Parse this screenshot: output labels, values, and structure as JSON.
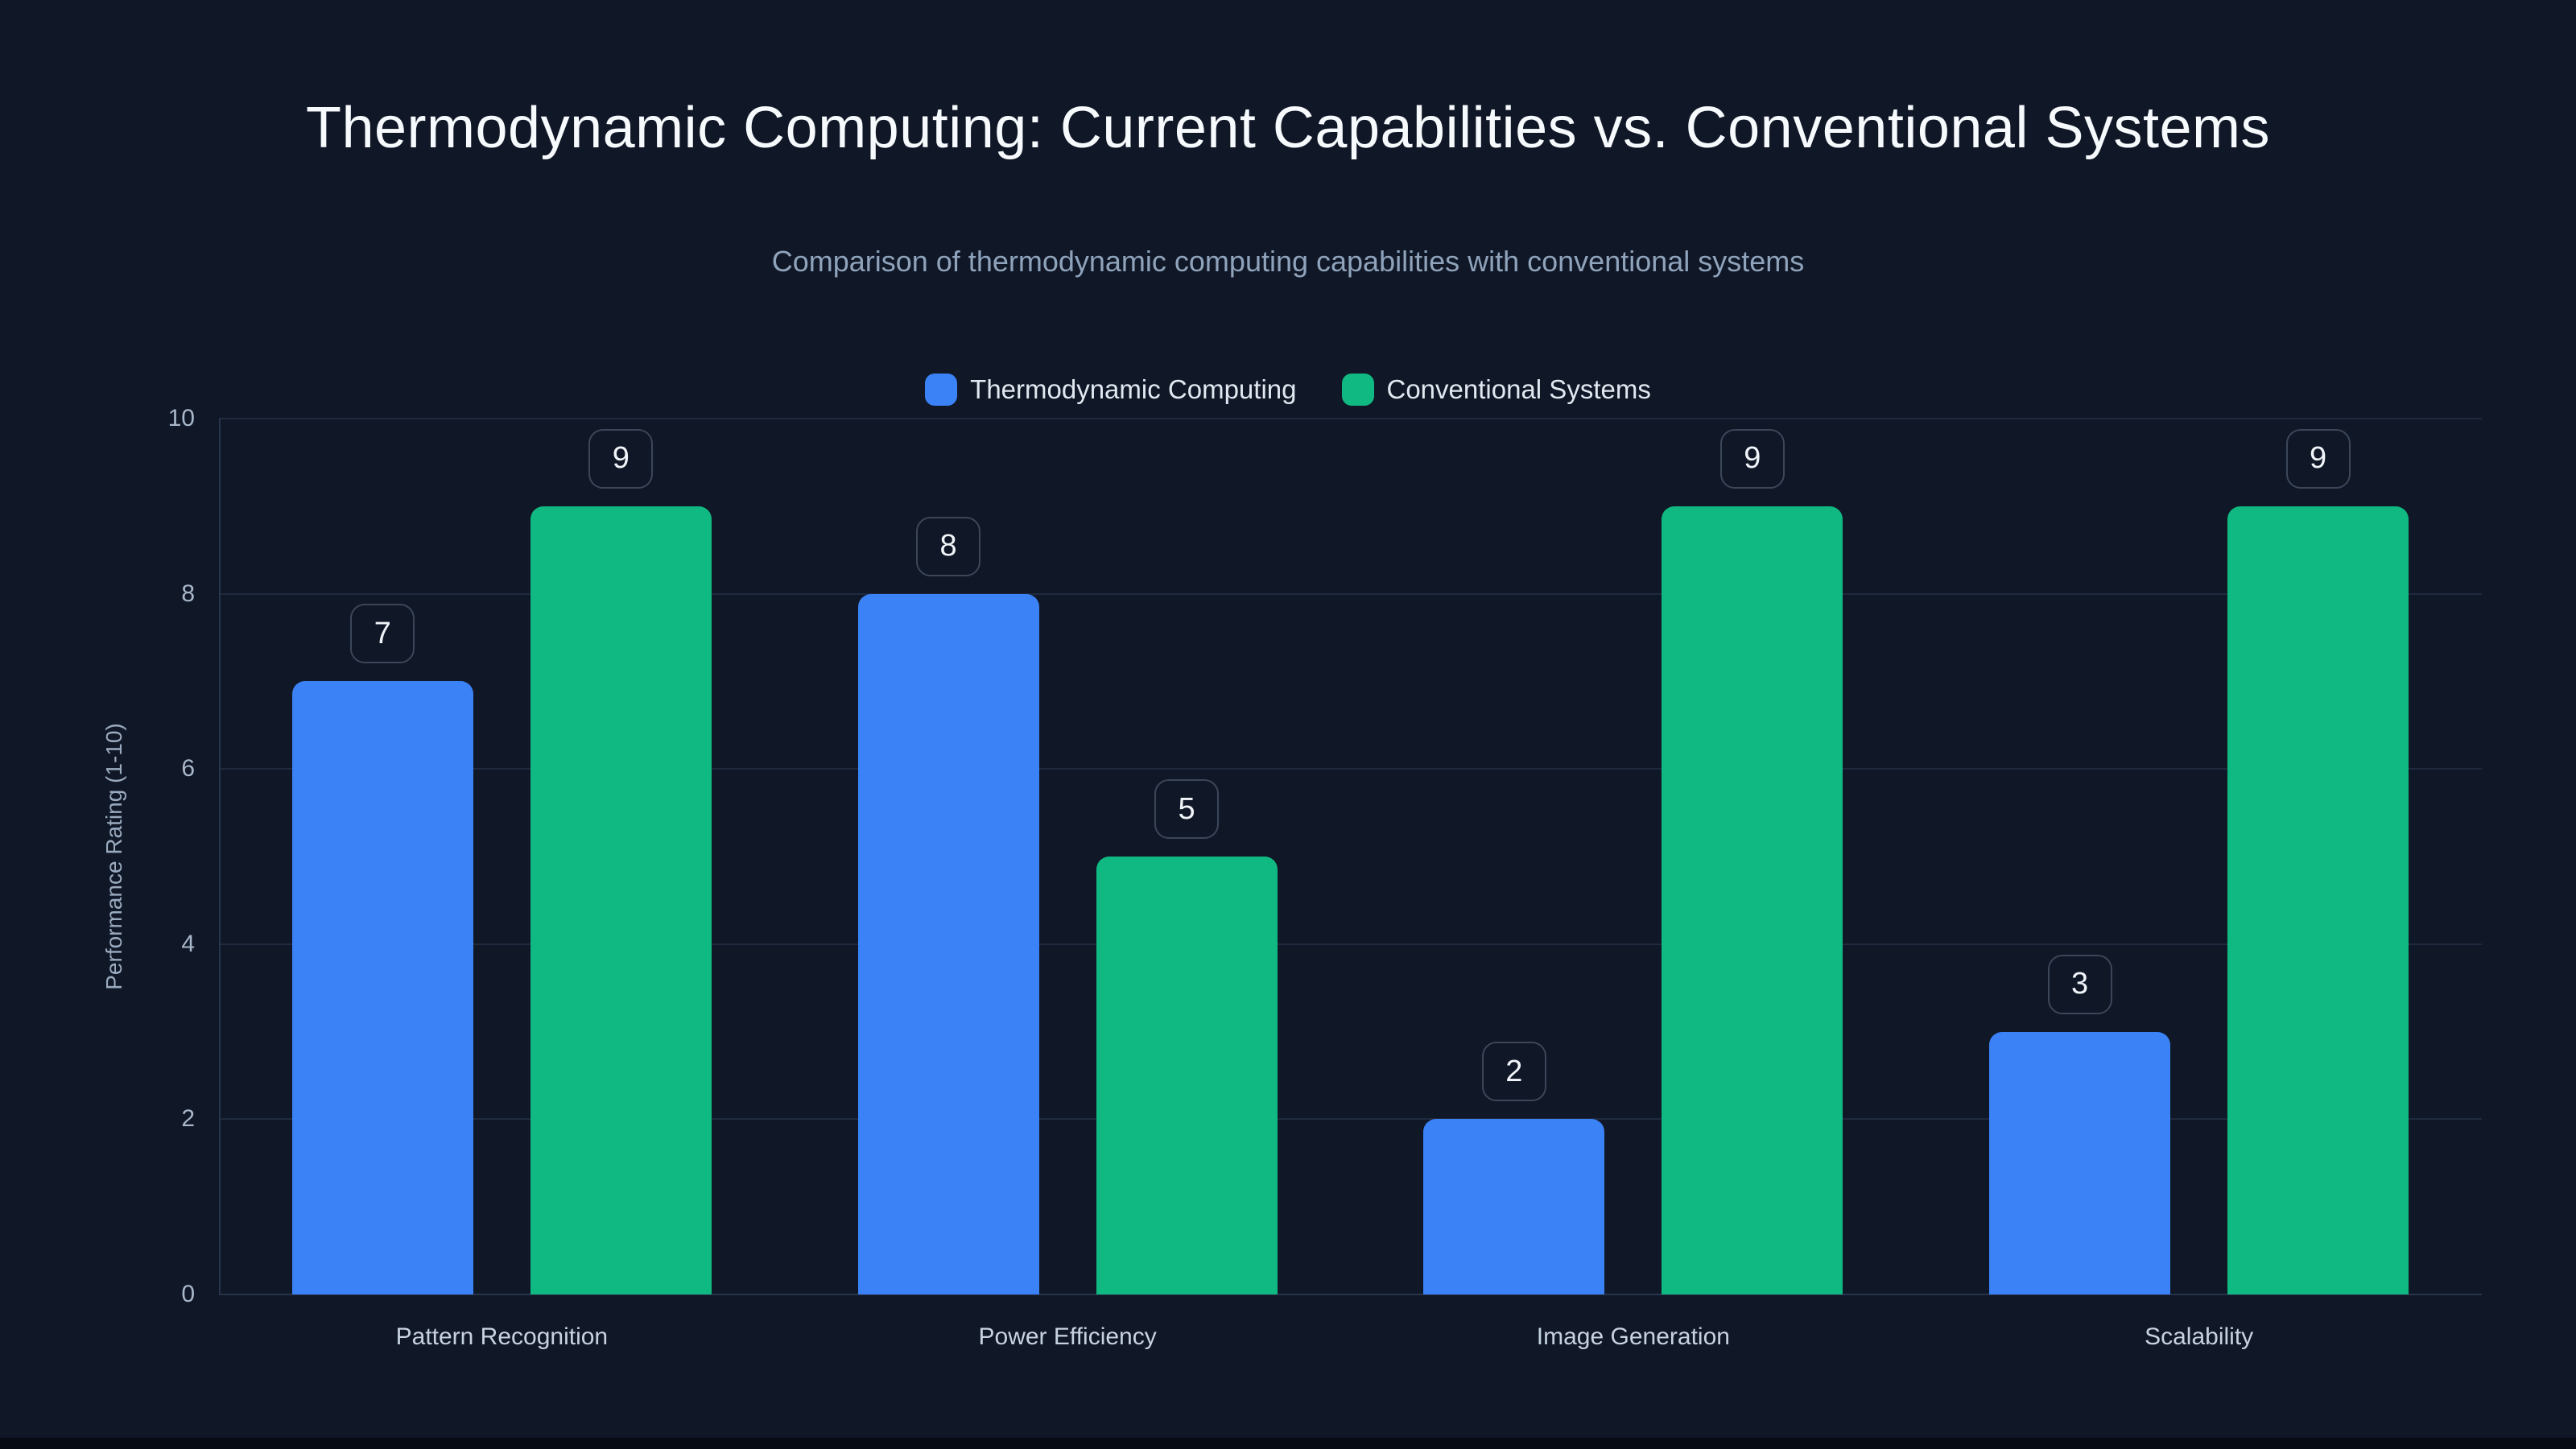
{
  "header": {
    "title": "Thermodynamic Computing: Current Capabilities vs. Conventional Systems",
    "subtitle": "Comparison of thermodynamic computing capabilities with conventional systems"
  },
  "chart_data": {
    "type": "bar",
    "title": "Thermodynamic Computing: Current Capabilities vs. Conventional Systems",
    "subtitle": "Comparison of thermodynamic computing capabilities with conventional systems",
    "categories": [
      "Pattern Recognition",
      "Power Efficiency",
      "Image Generation",
      "Scalability"
    ],
    "series": [
      {
        "name": "Thermodynamic Computing",
        "color": "#3b82f6",
        "values": [
          7,
          8,
          2,
          3
        ]
      },
      {
        "name": "Conventional Systems",
        "color": "#10b981",
        "values": [
          9,
          5,
          9,
          9
        ]
      }
    ],
    "ylabel": "Performance Rating (1-10)",
    "ylim": [
      0,
      10
    ],
    "yticks": [
      0,
      2,
      4,
      6,
      8,
      10
    ],
    "grid": true,
    "legend_position": "top",
    "value_labels": "rounded badges above each bar"
  },
  "colors": {
    "background": "#101727",
    "gridline": "#1f2a3e",
    "axis_line": "#28344c",
    "badge_border": "#3b4759",
    "title_text": "#f7fafc",
    "subtitle_text": "#8fa3bb",
    "tick_text": "#a9b7cb",
    "category_text": "#c7d2e0",
    "legend_text": "#e2e8f0",
    "badge_text": "#f1f5f9"
  }
}
